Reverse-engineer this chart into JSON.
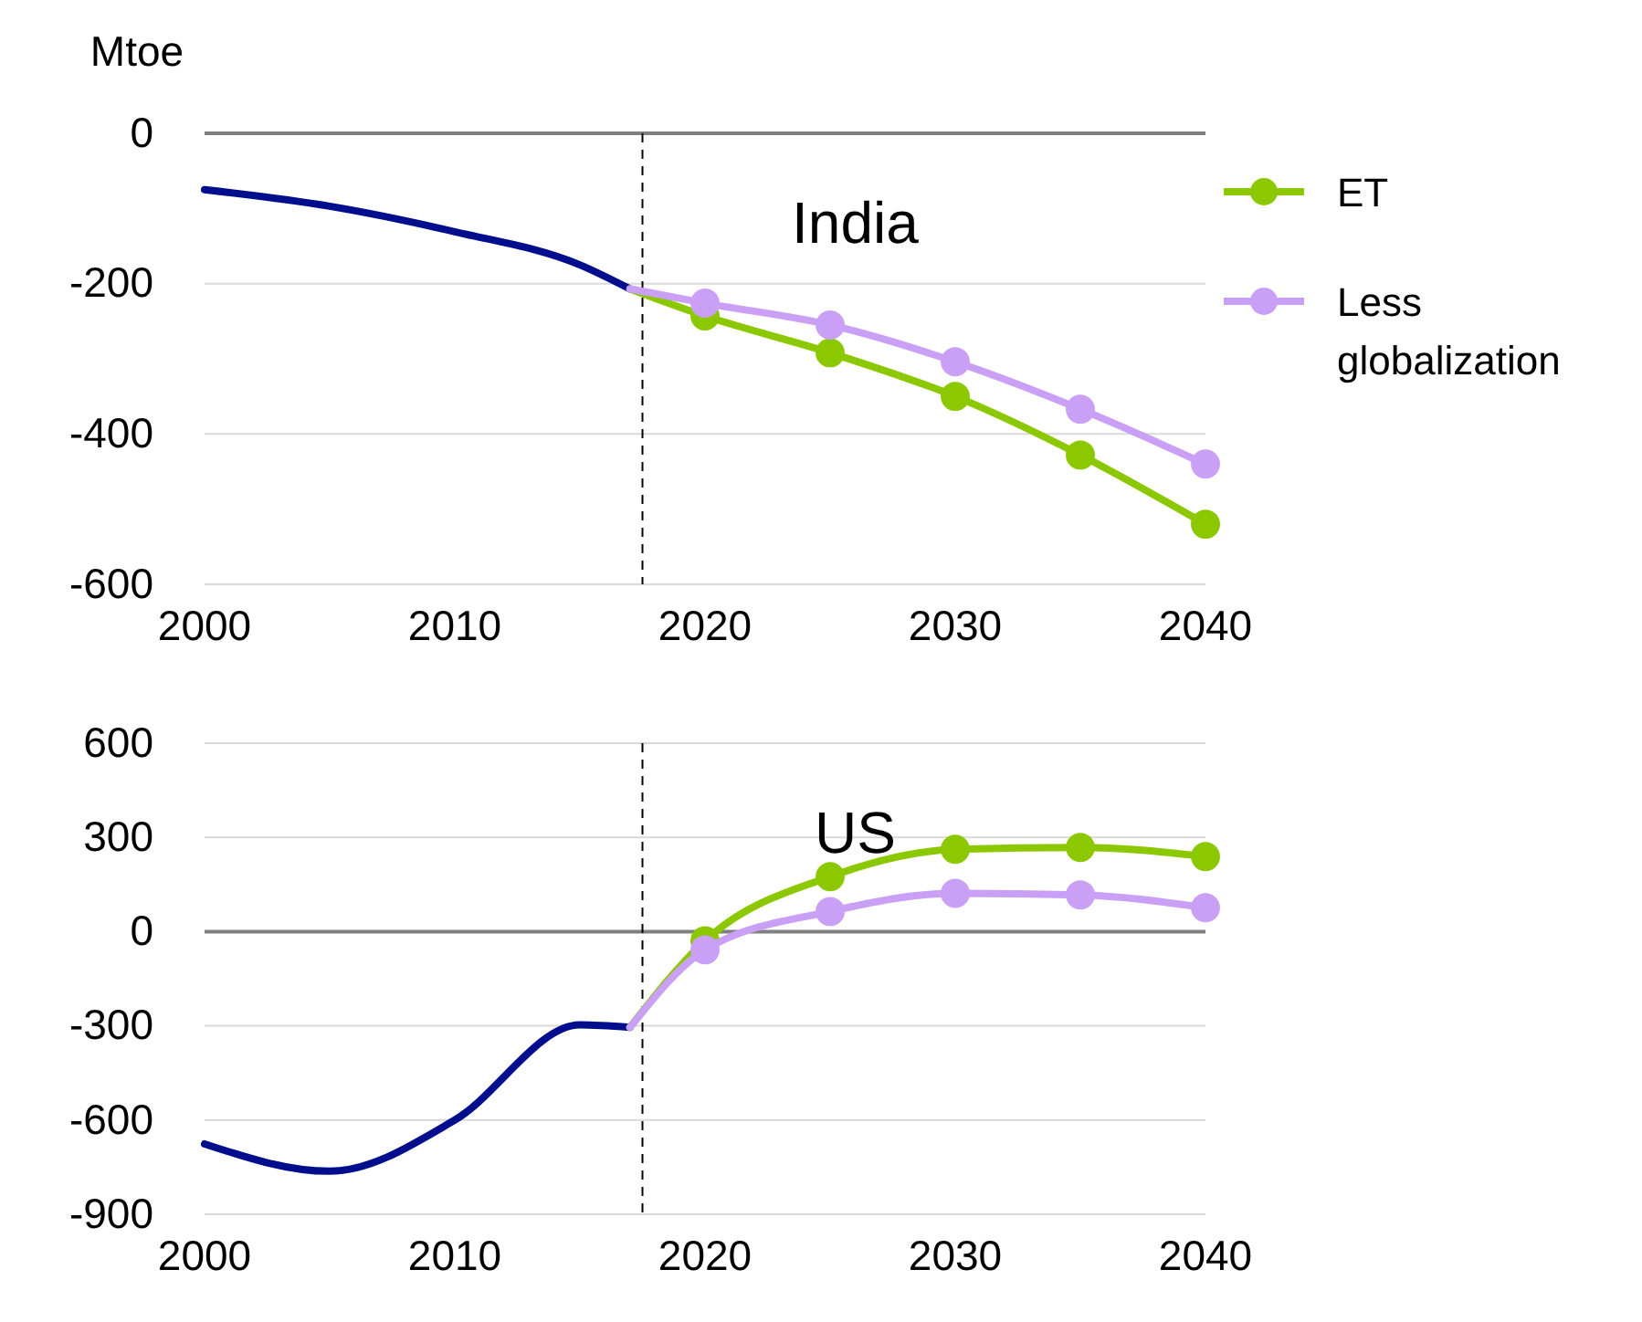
{
  "chart_data": [
    {
      "type": "line",
      "title": "India",
      "ylabel": "Mtoe",
      "xlim": [
        2000,
        2040
      ],
      "xticks": [
        2000,
        2010,
        2020,
        2030,
        2040
      ],
      "ylim": [
        -600,
        0
      ],
      "yticks": [
        -600,
        -400,
        -200,
        0
      ],
      "grid": "y",
      "legend": "top right",
      "marker": "circle",
      "line_style": "solid",
      "ref_lines": [
        {
          "axis": "x",
          "value": 2017.5,
          "label": null,
          "line_style": "dashed",
          "color": "#000000"
        }
      ],
      "series": [
        {
          "type": "line",
          "marker": "none",
          "color": "#000d8c",
          "x": [
            2000,
            2005,
            2010,
            2015,
            2017
          ],
          "values": [
            -75,
            -97,
            -131,
            -175,
            -207
          ]
        },
        {
          "name": "ET",
          "color": "#8cc800",
          "x": [
            2017,
            2020,
            2025,
            2030,
            2035,
            2040
          ],
          "values": [
            -207,
            -243,
            -292,
            -350,
            -428,
            -520
          ]
        },
        {
          "name": "Less globalization",
          "color": "#c9a0f5",
          "x": [
            2017,
            2020,
            2025,
            2030,
            2035,
            2040
          ],
          "values": [
            -207,
            -226,
            -255,
            -304,
            -367,
            -440
          ]
        }
      ]
    },
    {
      "type": "line",
      "title": "US",
      "xlim": [
        2000,
        2040
      ],
      "xticks": [
        2000,
        2010,
        2020,
        2030,
        2040
      ],
      "ylim": [
        -900,
        600
      ],
      "yticks": [
        -900,
        -600,
        -300,
        0,
        300,
        600
      ],
      "grid": "y",
      "legend": false,
      "marker": "circle",
      "line_style": "solid",
      "ref_lines": [
        {
          "axis": "x",
          "value": 2017.5,
          "label": null,
          "line_style": "dashed",
          "color": "#000000"
        }
      ],
      "series": [
        {
          "type": "line",
          "marker": "none",
          "color": "#000d8c",
          "x": [
            2000,
            2005,
            2010,
            2015,
            2017
          ],
          "values": [
            -676,
            -763,
            -600,
            -297,
            -305
          ]
        },
        {
          "color": "#8cc800",
          "x": [
            2017,
            2020,
            2025,
            2030,
            2035,
            2040
          ],
          "values": [
            -305,
            -29,
            175,
            262,
            268,
            239
          ]
        },
        {
          "color": "#c9a0f5",
          "x": [
            2017,
            2020,
            2025,
            2030,
            2035,
            2040
          ],
          "values": [
            -305,
            -58,
            64,
            122,
            117,
            76
          ]
        }
      ]
    }
  ]
}
